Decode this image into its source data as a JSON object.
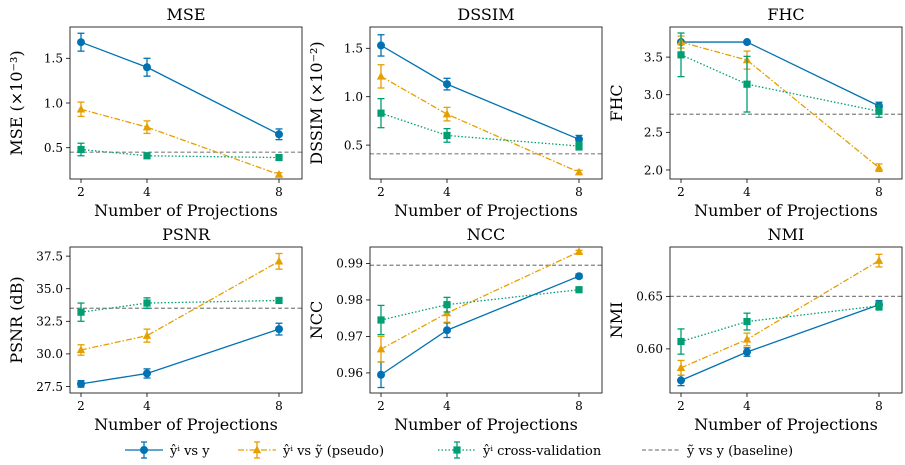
{
  "legend": [
    {
      "label": "ŷⁱ vs y"
    },
    {
      "label": "ŷⁱ vs ỹ (pseudo)"
    },
    {
      "label": "ŷⁱ cross-validation"
    },
    {
      "label": "ỹ vs y (baseline)"
    }
  ],
  "colors": {
    "blue": "#0072B2",
    "orange": "#E69F00",
    "green": "#009E73",
    "baseline": "#808080"
  },
  "chart_data": [
    {
      "type": "line",
      "title": "MSE",
      "xlabel": "Number of Projections",
      "ylabel": "MSE (×10⁻³)",
      "x": [
        2,
        4,
        8
      ],
      "xticks": [
        "2",
        "4",
        "8"
      ],
      "ylim": [
        0.15,
        1.85
      ],
      "yticks": [
        "0.5",
        "1.0",
        "1.5"
      ],
      "ytick_values": [
        0.5,
        1.0,
        1.5
      ],
      "baseline": 0.45,
      "series": [
        {
          "values": [
            1.68,
            1.4,
            0.65
          ],
          "err": [
            0.1,
            0.1,
            0.06
          ]
        },
        {
          "values": [
            0.93,
            0.73,
            0.2
          ],
          "err": [
            0.08,
            0.07,
            0.02
          ]
        },
        {
          "values": [
            0.48,
            0.41,
            0.39
          ],
          "err": [
            0.07,
            0.03,
            0.03
          ]
        }
      ]
    },
    {
      "type": "line",
      "title": "DSSIM",
      "xlabel": "Number of Projections",
      "ylabel": "DSSIM (×10⁻²)",
      "x": [
        2,
        4,
        8
      ],
      "xticks": [
        "2",
        "4",
        "8"
      ],
      "ylim": [
        0.15,
        1.72
      ],
      "yticks": [
        "0.5",
        "1.0",
        "1.5"
      ],
      "ytick_values": [
        0.5,
        1.0,
        1.5
      ],
      "baseline": 0.41,
      "series": [
        {
          "values": [
            1.53,
            1.13,
            0.56
          ],
          "err": [
            0.11,
            0.06,
            0.04
          ]
        },
        {
          "values": [
            1.21,
            0.82,
            0.22
          ],
          "err": [
            0.12,
            0.07,
            0.02
          ]
        },
        {
          "values": [
            0.83,
            0.6,
            0.49
          ],
          "err": [
            0.15,
            0.07,
            0.04
          ]
        }
      ]
    },
    {
      "type": "line",
      "title": "FHC",
      "xlabel": "Number of Projections",
      "ylabel": "FHC",
      "x": [
        2,
        4,
        8
      ],
      "xticks": [
        "2",
        "4",
        "8"
      ],
      "ylim": [
        1.88,
        3.9
      ],
      "yticks": [
        "2.0",
        "2.5",
        "3.0",
        "3.5"
      ],
      "ytick_values": [
        2.0,
        2.5,
        3.0,
        3.5
      ],
      "baseline": 2.74,
      "series": [
        {
          "values": [
            3.7,
            3.7,
            2.85
          ],
          "err": [
            0.01,
            0.01,
            0.05
          ]
        },
        {
          "values": [
            3.7,
            3.46,
            2.03
          ],
          "err": [
            0.08,
            0.12,
            0.05
          ]
        },
        {
          "values": [
            3.53,
            3.14,
            2.78
          ],
          "err": [
            0.29,
            0.37,
            0.08
          ]
        }
      ]
    },
    {
      "type": "line",
      "title": "PSNR",
      "xlabel": "Number of Projections",
      "ylabel": "PSNR (dB)",
      "x": [
        2,
        4,
        8
      ],
      "xticks": [
        "2",
        "4",
        "8"
      ],
      "ylim": [
        27.0,
        38.2
      ],
      "yticks": [
        "27.5",
        "30.0",
        "32.5",
        "35.0",
        "37.5"
      ],
      "ytick_values": [
        27.5,
        30.0,
        32.5,
        35.0,
        37.5
      ],
      "baseline": 33.5,
      "series": [
        {
          "values": [
            27.7,
            28.5,
            31.9
          ],
          "err": [
            0.25,
            0.35,
            0.45
          ]
        },
        {
          "values": [
            30.3,
            31.4,
            37.1
          ],
          "err": [
            0.4,
            0.5,
            0.6
          ]
        },
        {
          "values": [
            33.2,
            33.9,
            34.1
          ],
          "err": [
            0.7,
            0.4,
            0.2
          ]
        }
      ]
    },
    {
      "type": "line",
      "title": "NCC",
      "xlabel": "Number of Projections",
      "ylabel": "NCC",
      "x": [
        2,
        4,
        8
      ],
      "xticks": [
        "2",
        "4",
        "8"
      ],
      "ylim": [
        0.9545,
        0.9945
      ],
      "yticks": [
        "0.96",
        "0.97",
        "0.98",
        "0.99"
      ],
      "ytick_values": [
        0.96,
        0.97,
        0.98,
        0.99
      ],
      "baseline": 0.9895,
      "series": [
        {
          "values": [
            0.9595,
            0.9717,
            0.9865
          ],
          "err": [
            0.0035,
            0.002,
            0.0006
          ]
        },
        {
          "values": [
            0.9665,
            0.9764,
            0.9932
          ],
          "err": [
            0.0035,
            0.0025,
            0.0004
          ]
        },
        {
          "values": [
            0.9745,
            0.9787,
            0.9828
          ],
          "err": [
            0.004,
            0.002,
            0.0004
          ]
        }
      ]
    },
    {
      "type": "line",
      "title": "NMI",
      "xlabel": "Number of Projections",
      "ylabel": "NMI",
      "x": [
        2,
        4,
        8
      ],
      "xticks": [
        "2",
        "4",
        "8"
      ],
      "ylim": [
        0.558,
        0.697
      ],
      "yticks": [
        "0.60",
        "0.65"
      ],
      "ytick_values": [
        0.6,
        0.65
      ],
      "baseline": 0.65,
      "series": [
        {
          "values": [
            0.57,
            0.597,
            0.642
          ],
          "err": [
            0.005,
            0.004,
            0.004
          ]
        },
        {
          "values": [
            0.582,
            0.609,
            0.684
          ],
          "err": [
            0.007,
            0.006,
            0.006
          ]
        },
        {
          "values": [
            0.607,
            0.626,
            0.641
          ],
          "err": [
            0.012,
            0.008,
            0.004
          ]
        }
      ]
    }
  ]
}
